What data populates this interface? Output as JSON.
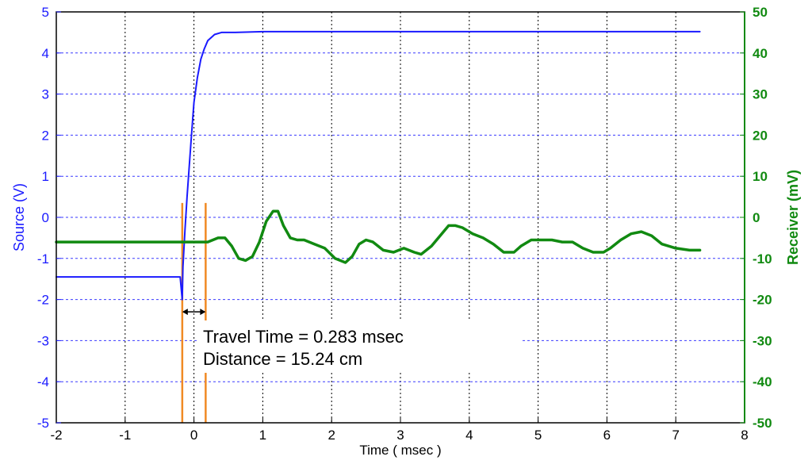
{
  "chart_data": {
    "type": "line",
    "xlabel": "Time ( msec )",
    "ylabel_left": "Source (V)",
    "ylabel_right": "Receiver (mV)",
    "xlim": [
      -2,
      8
    ],
    "ylim_left": [
      -5,
      5
    ],
    "ylim_right": [
      -50,
      50
    ],
    "x_ticks": [
      -2,
      -1,
      0,
      1,
      2,
      3,
      4,
      5,
      6,
      7,
      8
    ],
    "y_left_ticks": [
      -5,
      -4,
      -3,
      -2,
      -1,
      0,
      1,
      2,
      3,
      4,
      5
    ],
    "y_right_ticks": [
      -50,
      -40,
      -30,
      -20,
      -10,
      0,
      10,
      20,
      30,
      40,
      50
    ],
    "grid": true,
    "colors": {
      "source": "#1a1aff",
      "receiver": "#118a11",
      "marker": "#f08a24",
      "axis_right": "#118a11",
      "axis_left": "#1a1aff"
    },
    "series": [
      {
        "axis": "left",
        "x": [
          -2.0,
          -0.2,
          -0.17,
          -0.16,
          -0.13,
          -0.1,
          -0.07,
          -0.04,
          0.0,
          0.05,
          0.1,
          0.15,
          0.2,
          0.3,
          0.4,
          0.6,
          1.0,
          2.0,
          4.0,
          6.0,
          7.35
        ],
        "values": [
          -1.45,
          -1.45,
          -2.0,
          -1.2,
          -0.3,
          0.5,
          1.2,
          1.9,
          2.8,
          3.4,
          3.85,
          4.1,
          4.3,
          4.45,
          4.5,
          4.5,
          4.52,
          4.52,
          4.52,
          4.52,
          4.52
        ]
      },
      {
        "axis": "right",
        "x": [
          -2.0,
          -0.1,
          0.2,
          0.35,
          0.45,
          0.55,
          0.65,
          0.75,
          0.85,
          0.95,
          1.05,
          1.15,
          1.22,
          1.3,
          1.4,
          1.5,
          1.6,
          1.75,
          1.9,
          2.05,
          2.2,
          2.3,
          2.4,
          2.5,
          2.6,
          2.75,
          2.9,
          3.05,
          3.2,
          3.3,
          3.45,
          3.6,
          3.7,
          3.8,
          3.9,
          4.05,
          4.2,
          4.35,
          4.5,
          4.65,
          4.75,
          4.9,
          5.05,
          5.2,
          5.35,
          5.5,
          5.65,
          5.8,
          5.95,
          6.05,
          6.2,
          6.35,
          6.5,
          6.65,
          6.8,
          7.0,
          7.2,
          7.35
        ],
        "values": [
          -6,
          -6,
          -6,
          -5,
          -5,
          -7,
          -10,
          -10.5,
          -9.5,
          -6,
          -1,
          1.5,
          1.5,
          -2,
          -5,
          -5.5,
          -5.5,
          -6.5,
          -7.5,
          -10,
          -11,
          -9.5,
          -6.5,
          -5.5,
          -6,
          -8,
          -8.5,
          -7.5,
          -8.5,
          -9,
          -7,
          -4,
          -2,
          -2,
          -2.5,
          -4,
          -5,
          -6.5,
          -8.5,
          -8.5,
          -7,
          -5.5,
          -5.5,
          -5.5,
          -6,
          -6,
          -7.5,
          -8.5,
          -8.5,
          -7.5,
          -5.5,
          -4,
          -3.5,
          -4.5,
          -6.5,
          -7.5,
          -8,
          -8
        ]
      }
    ],
    "markers": [
      {
        "type": "vline",
        "x": -0.17,
        "from_y": -5,
        "to_y": 0.35
      },
      {
        "type": "vline",
        "x": 0.17,
        "from_y": -5,
        "to_y": 0.35
      },
      {
        "type": "double-arrow",
        "x1": -0.17,
        "x2": 0.17,
        "y": -2.3
      }
    ],
    "annotations": [
      "Travel Time = 0.283 msec",
      "Distance = 15.24 cm"
    ]
  }
}
